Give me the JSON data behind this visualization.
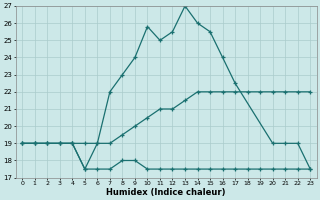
{
  "xlabel": "Humidex (Indice chaleur)",
  "bg_color": "#cce8e8",
  "line_color": "#1a7070",
  "grid_color": "#aacccc",
  "xlim": [
    -0.5,
    23.5
  ],
  "ylim": [
    17,
    27
  ],
  "yticks": [
    17,
    18,
    19,
    20,
    21,
    22,
    23,
    24,
    25,
    26,
    27
  ],
  "xticks": [
    0,
    1,
    2,
    3,
    4,
    5,
    6,
    7,
    8,
    9,
    10,
    11,
    12,
    13,
    14,
    15,
    16,
    17,
    18,
    19,
    20,
    21,
    22,
    23
  ],
  "series": [
    {
      "x": [
        0,
        1,
        2,
        3,
        4,
        5,
        6,
        7,
        8,
        9,
        10,
        11,
        12,
        13,
        14,
        15,
        16,
        17,
        18,
        19,
        20,
        21,
        22,
        23
      ],
      "y": [
        19,
        19,
        19,
        19,
        19,
        19,
        19,
        19,
        19.5,
        20,
        20.5,
        21,
        21,
        21.5,
        22,
        22,
        22,
        22,
        22,
        22,
        22,
        22,
        22,
        22
      ]
    },
    {
      "x": [
        0,
        1,
        2,
        3,
        4,
        5,
        6,
        7,
        8,
        9,
        10,
        11,
        12,
        13,
        14,
        15,
        16,
        17,
        18,
        19,
        20,
        21,
        22,
        23
      ],
      "y": [
        19,
        19,
        19,
        19,
        19,
        17.5,
        17.5,
        17.5,
        18,
        18,
        17.5,
        17.5,
        17.5,
        17.5,
        17.5,
        17.5,
        17.5,
        17.5,
        17.5,
        17.5,
        17.5,
        17.5,
        17.5,
        17.5
      ]
    },
    {
      "x": [
        0,
        1,
        2,
        3,
        4,
        5,
        6,
        7,
        8,
        9,
        10,
        11,
        12,
        13,
        14,
        15,
        16,
        17,
        20,
        21,
        22,
        23
      ],
      "y": [
        19,
        19,
        19,
        19,
        19,
        17.5,
        19,
        22,
        23,
        24,
        25.8,
        25,
        25.5,
        27,
        26,
        25.5,
        24,
        22.5,
        19,
        19,
        19,
        17.5
      ]
    }
  ]
}
